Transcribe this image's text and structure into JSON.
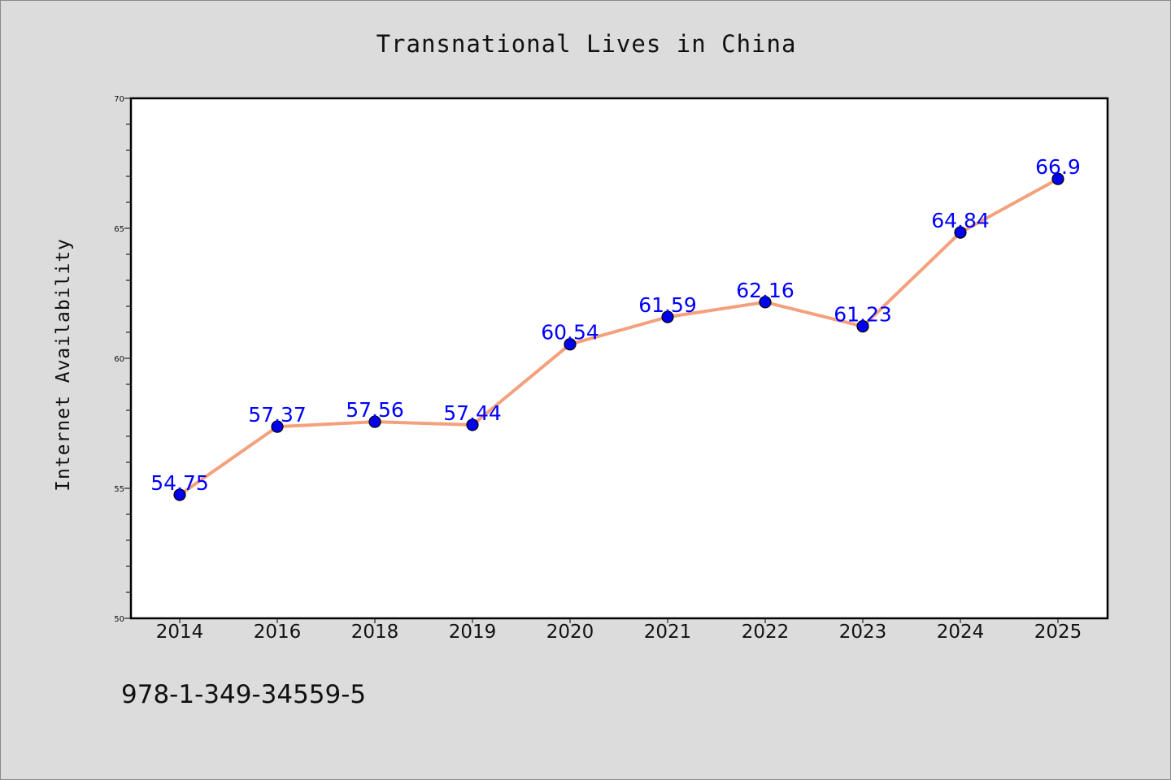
{
  "chart_data": {
    "type": "line",
    "title": "Transnational Lives in China",
    "xlabel": "",
    "ylabel": "Internet Availability",
    "categories": [
      "2014",
      "2016",
      "2018",
      "2019",
      "2020",
      "2021",
      "2022",
      "2023",
      "2024",
      "2025"
    ],
    "series": [
      {
        "values": [
          54.75,
          57.37,
          57.56,
          57.44,
          60.54,
          61.59,
          62.16,
          61.23,
          64.84,
          66.9
        ],
        "labels": [
          "54.75",
          "57.37",
          "57.56",
          "57.44",
          "60.54",
          "61.59",
          "62.16",
          "61.23",
          "64.84",
          "66.9"
        ],
        "line_color": "#f4a07c",
        "marker_color": "#0000ee"
      }
    ],
    "ylim": [
      50,
      70
    ],
    "yticks": [
      "50",
      "55",
      "60",
      "65",
      "70"
    ],
    "grid": false,
    "legend": "none"
  },
  "footer": {
    "isbn": "978-1-349-34559-5"
  }
}
